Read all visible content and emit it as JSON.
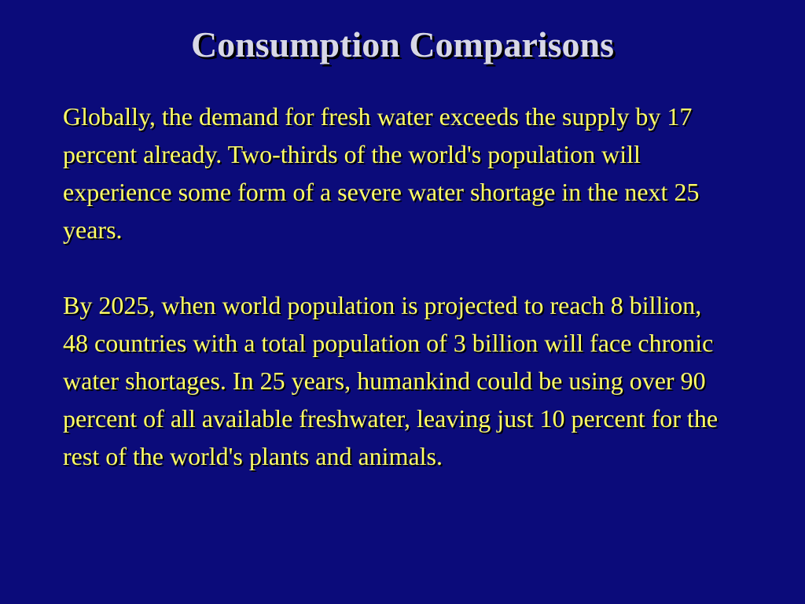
{
  "slide": {
    "title": "Consumption Comparisons",
    "paragraphs": [
      "Globally, the demand for fresh water exceeds the supply by 17 percent already. Two-thirds of the world's population will experience some form of a severe water shortage in the next 25 years.",
      "By 2025, when world population is projected to reach 8 billion, 48 countries with a total population of 3 billion will face chronic water shortages. In 25 years, humankind could be using over 90 percent of all available freshwater, leaving just 10 percent for the rest of the world's plants and animals."
    ]
  },
  "colors": {
    "background": "#0b0b7a",
    "title": "#d8d8e6",
    "body_text": "#ffff66"
  }
}
